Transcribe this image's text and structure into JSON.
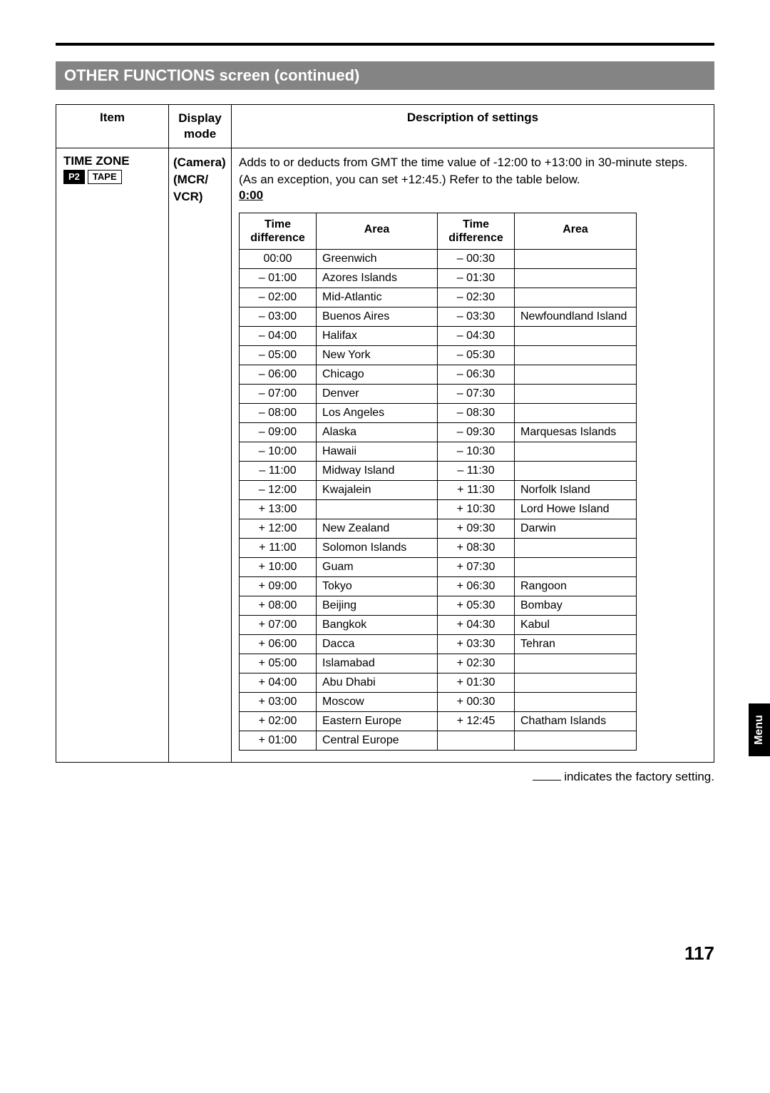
{
  "section_title": "OTHER FUNCTIONS screen (continued)",
  "outer_headers": {
    "item": "Item",
    "mode": "Display mode",
    "desc": "Description of settings"
  },
  "item": {
    "title": "TIME ZONE",
    "badge1": "P2",
    "badge2": "TAPE"
  },
  "mode": {
    "line1": "(Camera)",
    "line2": "(MCR/",
    "line3": "VCR)"
  },
  "description": {
    "text": "Adds to or deducts from GMT the time value of -12:00 to +13:00 in 30-minute steps. (As an exception, you can set +12:45.) Refer to the table below.",
    "default_value": "0:00"
  },
  "tz_headers": {
    "c1": "Time difference",
    "c2": "Area",
    "c3": "Time difference",
    "c4": "Area"
  },
  "tz_rows": [
    {
      "c1": "00:00",
      "c2": "Greenwich",
      "c3": "– 00:30",
      "c4": ""
    },
    {
      "c1": "– 01:00",
      "c2": "Azores Islands",
      "c3": "– 01:30",
      "c4": ""
    },
    {
      "c1": "– 02:00",
      "c2": "Mid-Atlantic",
      "c3": "– 02:30",
      "c4": ""
    },
    {
      "c1": "– 03:00",
      "c2": "Buenos Aires",
      "c3": "– 03:30",
      "c4": "Newfoundland Island"
    },
    {
      "c1": "– 04:00",
      "c2": "Halifax",
      "c3": "– 04:30",
      "c4": ""
    },
    {
      "c1": "– 05:00",
      "c2": "New York",
      "c3": "– 05:30",
      "c4": ""
    },
    {
      "c1": "– 06:00",
      "c2": "Chicago",
      "c3": "– 06:30",
      "c4": ""
    },
    {
      "c1": "– 07:00",
      "c2": "Denver",
      "c3": "– 07:30",
      "c4": ""
    },
    {
      "c1": "– 08:00",
      "c2": "Los Angeles",
      "c3": "– 08:30",
      "c4": ""
    },
    {
      "c1": "– 09:00",
      "c2": "Alaska",
      "c3": "– 09:30",
      "c4": "Marquesas Islands"
    },
    {
      "c1": "– 10:00",
      "c2": "Hawaii",
      "c3": "– 10:30",
      "c4": ""
    },
    {
      "c1": "– 11:00",
      "c2": "Midway Island",
      "c3": "– 11:30",
      "c4": ""
    },
    {
      "c1": "– 12:00",
      "c2": "Kwajalein",
      "c3": "+ 11:30",
      "c4": "Norfolk Island"
    },
    {
      "c1": "+ 13:00",
      "c2": "",
      "c3": "+ 10:30",
      "c4": "Lord Howe Island"
    },
    {
      "c1": "+ 12:00",
      "c2": "New Zealand",
      "c3": "+ 09:30",
      "c4": "Darwin"
    },
    {
      "c1": "+ 11:00",
      "c2": "Solomon Islands",
      "c3": "+ 08:30",
      "c4": ""
    },
    {
      "c1": "+ 10:00",
      "c2": "Guam",
      "c3": "+ 07:30",
      "c4": ""
    },
    {
      "c1": "+ 09:00",
      "c2": "Tokyo",
      "c3": "+ 06:30",
      "c4": "Rangoon"
    },
    {
      "c1": "+ 08:00",
      "c2": "Beijing",
      "c3": "+ 05:30",
      "c4": "Bombay"
    },
    {
      "c1": "+ 07:00",
      "c2": "Bangkok",
      "c3": "+ 04:30",
      "c4": "Kabul"
    },
    {
      "c1": "+ 06:00",
      "c2": "Dacca",
      "c3": "+ 03:30",
      "c4": "Tehran"
    },
    {
      "c1": "+ 05:00",
      "c2": "Islamabad",
      "c3": "+ 02:30",
      "c4": ""
    },
    {
      "c1": "+ 04:00",
      "c2": "Abu Dhabi",
      "c3": "+ 01:30",
      "c4": ""
    },
    {
      "c1": "+ 03:00",
      "c2": "Moscow",
      "c3": "+ 00:30",
      "c4": ""
    },
    {
      "c1": "+ 02:00",
      "c2": "Eastern Europe",
      "c3": "+ 12:45",
      "c4": "Chatham Islands"
    },
    {
      "c1": "+ 01:00",
      "c2": "Central Europe",
      "c3": "",
      "c4": ""
    }
  ],
  "factory_note": "indicates the factory setting.",
  "side_tab": "Menu",
  "page_number": "117"
}
